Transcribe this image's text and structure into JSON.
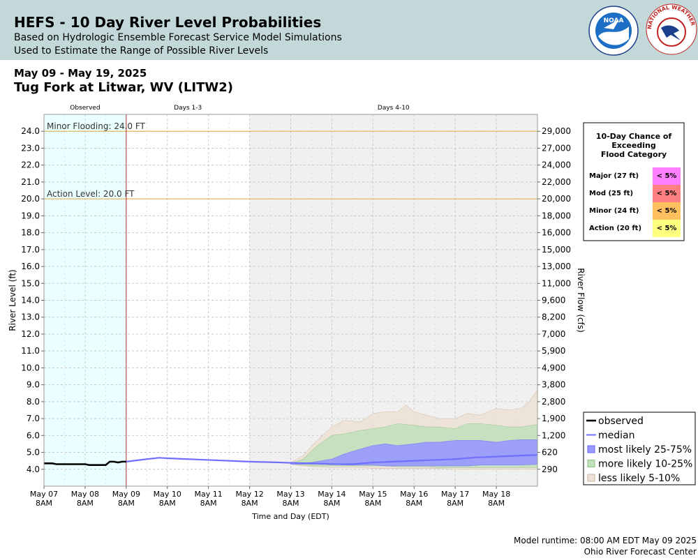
{
  "header": {
    "title": "HEFS - 10 Day River Level Probabilities",
    "subtitle1": "Based on Hydrologic Ensemble Forecast Service Model Simulations",
    "subtitle2": "Used to Estimate the Range of Possible River Levels",
    "noaa_logo": "NOAA",
    "nws_logo": "NATIONAL WEATHER SERVICE"
  },
  "date_range": "May 09 - May 19, 2025",
  "station": "Tug Fork at Litwar, WV (LITW2)",
  "footer": {
    "runtime": "Model runtime: 08:00 AM EDT May 09 2025",
    "center": "Ohio River Forecast Center"
  },
  "colors": {
    "observed_bg": "#eaffff",
    "extended_bg": "#f0f0f0",
    "observed": "#000000",
    "median": "#7070ff",
    "band_25_75": "#9999ff",
    "band_10_25": "#c3e0bd",
    "band_5_10": "#eee2d6",
    "flood_line": "#e8b860",
    "now_line": "#b03030"
  },
  "periods": [
    "Observed",
    "Days 1-3",
    "Days 4-10"
  ],
  "flood_lines": [
    {
      "label": "Minor Flooding: 24.0 FT",
      "value": 24.0
    },
    {
      "label": "Action Level: 20.0 FT",
      "value": 20.0
    }
  ],
  "legend_box": {
    "title": [
      "10-Day Chance of",
      "Exceeding",
      "Flood Category"
    ],
    "rows": [
      {
        "label": "Major (27 ft)",
        "value": "< 5%",
        "color": "#ff80ff"
      },
      {
        "label": "Mod (25 ft)",
        "value": "< 5%",
        "color": "#ff8080"
      },
      {
        "label": "Minor (24 ft)",
        "value": "< 5%",
        "color": "#ffc060"
      },
      {
        "label": "Action (20 ft)",
        "value": "< 5%",
        "color": "#ffff80"
      }
    ]
  },
  "chart_data": {
    "type": "area",
    "xlabel": "Time and Day (EDT)",
    "ylabel": "River Level (ft)",
    "ylabel_right": "River Flow (cfs)",
    "xlim": [
      0,
      12
    ],
    "ylim": [
      3.0,
      25.0
    ],
    "grid": true,
    "legend_position": "bottom-right",
    "x_ticks": [
      {
        "x": 0,
        "label": [
          "May 07",
          "8AM"
        ]
      },
      {
        "x": 1,
        "label": [
          "May 08",
          "8AM"
        ]
      },
      {
        "x": 2,
        "label": [
          "May 09",
          "8AM"
        ]
      },
      {
        "x": 3,
        "label": [
          "May 10",
          "8AM"
        ]
      },
      {
        "x": 4,
        "label": [
          "May 11",
          "8AM"
        ]
      },
      {
        "x": 5,
        "label": [
          "May 12",
          "8AM"
        ]
      },
      {
        "x": 6,
        "label": [
          "May 13",
          "8AM"
        ]
      },
      {
        "x": 7,
        "label": [
          "May 14",
          "8AM"
        ]
      },
      {
        "x": 8,
        "label": [
          "May 15",
          "8AM"
        ]
      },
      {
        "x": 9,
        "label": [
          "May 16",
          "8AM"
        ]
      },
      {
        "x": 10,
        "label": [
          "May 17",
          "8AM"
        ]
      },
      {
        "x": 11,
        "label": [
          "May 18",
          "8AM"
        ]
      }
    ],
    "y_ticks": [
      4.0,
      5.0,
      6.0,
      7.0,
      8.0,
      9.0,
      10.0,
      11.0,
      12.0,
      13.0,
      14.0,
      15.0,
      16.0,
      17.0,
      18.0,
      19.0,
      20.0,
      21.0,
      22.0,
      23.0,
      24.0
    ],
    "y_tick_labels": [
      "4.0",
      "5.0",
      "6.0",
      "7.0",
      "8.0",
      "9.0",
      "10.0",
      "11.0",
      "12.0",
      "13.0",
      "14.0",
      "15.0",
      "16.0",
      "17.0",
      "18.0",
      "19.0",
      "20.0",
      "21.0",
      "22.0",
      "23.0",
      "24.0"
    ],
    "flow_ticks": [
      {
        "y": 4.0,
        "label": "290"
      },
      {
        "y": 5.0,
        "label": "620"
      },
      {
        "y": 6.0,
        "label": "1,200"
      },
      {
        "y": 7.0,
        "label": "1,900"
      },
      {
        "y": 8.0,
        "label": "2,800"
      },
      {
        "y": 9.0,
        "label": "3,800"
      },
      {
        "y": 10.0,
        "label": "4,900"
      },
      {
        "y": 11.0,
        "label": "5,900"
      },
      {
        "y": 12.0,
        "label": "7,000"
      },
      {
        "y": 13.0,
        "label": "8,200"
      },
      {
        "y": 14.0,
        "label": "9,600"
      },
      {
        "y": 15.0,
        "label": "11,000"
      },
      {
        "y": 16.0,
        "label": "13,000"
      },
      {
        "y": 17.0,
        "label": "15,000"
      },
      {
        "y": 18.0,
        "label": "16,000"
      },
      {
        "y": 19.0,
        "label": "18,000"
      },
      {
        "y": 20.0,
        "label": "20,000"
      },
      {
        "y": 21.0,
        "label": "22,000"
      },
      {
        "y": 22.0,
        "label": "24,000"
      },
      {
        "y": 23.0,
        "label": "27,000"
      },
      {
        "y": 24.0,
        "label": "29,000"
      }
    ],
    "observed": {
      "name": "observed",
      "x": [
        0,
        0.2,
        0.3,
        0.5,
        1.0,
        1.1,
        1.5,
        1.6,
        1.7,
        1.8,
        1.9,
        2.0
      ],
      "y": [
        4.35,
        4.35,
        4.3,
        4.3,
        4.3,
        4.25,
        4.25,
        4.45,
        4.45,
        4.4,
        4.45,
        4.45
      ]
    },
    "median": {
      "name": "median",
      "x": [
        2.0,
        2.5,
        2.8,
        3.0,
        3.5,
        4.0,
        4.5,
        5.0,
        5.5,
        6.0,
        6.5,
        7.0,
        7.5,
        8.0,
        8.5,
        9.0,
        9.5,
        10.0,
        10.5,
        11.0,
        11.5,
        12.0
      ],
      "y": [
        4.45,
        4.6,
        4.68,
        4.65,
        4.6,
        4.55,
        4.5,
        4.45,
        4.42,
        4.38,
        4.35,
        4.3,
        4.3,
        4.4,
        4.45,
        4.5,
        4.55,
        4.6,
        4.7,
        4.75,
        4.8,
        4.85
      ]
    },
    "bands": [
      {
        "name": "less likely 5-10%",
        "x": [
          6.0,
          6.3,
          6.6,
          7.0,
          7.3,
          7.7,
          8.0,
          8.3,
          8.6,
          8.8,
          9.0,
          9.3,
          9.6,
          10.0,
          10.3,
          10.6,
          11.0,
          11.3,
          11.6,
          11.8,
          12.0
        ],
        "upper": [
          4.4,
          4.8,
          5.6,
          6.5,
          6.9,
          6.8,
          7.3,
          7.4,
          7.4,
          7.8,
          7.4,
          7.2,
          7.0,
          7.0,
          7.3,
          7.2,
          7.6,
          7.5,
          7.6,
          8.0,
          8.7
        ],
        "lower": [
          4.3,
          4.2,
          4.15,
          4.1,
          4.1,
          4.1,
          4.05,
          4.05,
          4.05,
          4.05,
          4.05,
          4.05,
          4.05,
          4.0,
          4.0,
          4.0,
          4.0,
          4.0,
          4.0,
          4.0,
          4.0
        ]
      },
      {
        "name": "more likely 10-25%",
        "x": [
          6.0,
          6.3,
          6.6,
          7.0,
          7.3,
          7.7,
          8.0,
          8.3,
          8.6,
          9.0,
          9.3,
          9.6,
          10.0,
          10.3,
          10.6,
          11.0,
          11.3,
          11.6,
          12.0
        ],
        "upper": [
          4.35,
          4.6,
          5.3,
          6.0,
          6.1,
          6.3,
          6.4,
          6.5,
          6.7,
          6.6,
          6.5,
          6.5,
          6.4,
          6.7,
          6.7,
          6.6,
          6.5,
          6.5,
          6.65
        ],
        "lower": [
          4.3,
          4.25,
          4.2,
          4.2,
          4.2,
          4.2,
          4.2,
          4.2,
          4.15,
          4.15,
          4.15,
          4.1,
          4.1,
          4.1,
          4.1,
          4.1,
          4.1,
          4.1,
          4.1
        ]
      },
      {
        "name": "most likely 25-75%",
        "x": [
          6.0,
          6.5,
          7.0,
          7.3,
          7.7,
          8.0,
          8.3,
          8.6,
          9.0,
          9.3,
          9.6,
          10.0,
          10.3,
          10.6,
          11.0,
          11.3,
          11.6,
          12.0
        ],
        "upper": [
          4.35,
          4.4,
          4.6,
          4.9,
          5.2,
          5.4,
          5.5,
          5.4,
          5.5,
          5.6,
          5.6,
          5.7,
          5.7,
          5.7,
          5.6,
          5.7,
          5.75,
          5.75
        ],
        "lower": [
          4.3,
          4.3,
          4.3,
          4.25,
          4.25,
          4.25,
          4.2,
          4.2,
          4.2,
          4.2,
          4.2,
          4.2,
          4.2,
          4.25,
          4.25,
          4.25,
          4.25,
          4.3
        ]
      }
    ],
    "legend": [
      "observed",
      "median",
      "most likely 25-75%",
      "more likely 10-25%",
      "less likely 5-10%"
    ]
  }
}
